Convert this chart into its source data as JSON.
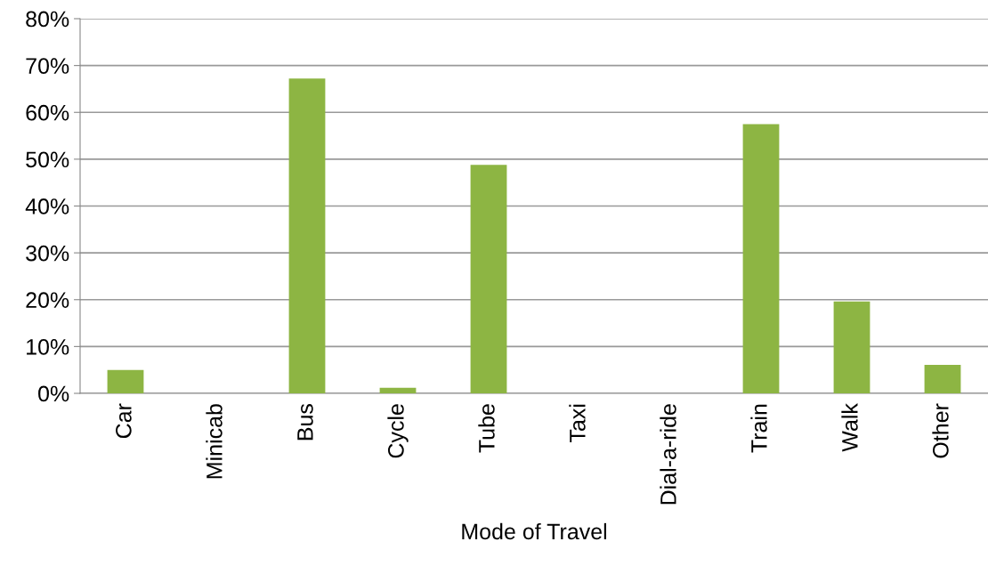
{
  "chart_data": {
    "type": "bar",
    "xlabel": "Mode of Travel",
    "categories": [
      "Car",
      "Minicab",
      "Bus",
      "Cycle",
      "Tube",
      "Taxi",
      "Dial-a-ride",
      "Train",
      "Walk",
      "Other"
    ],
    "values": [
      5.0,
      0,
      67.2,
      1.2,
      48.8,
      0,
      0,
      57.5,
      19.6,
      6.1
    ],
    "color": "#8db543",
    "ylim": [
      0,
      80
    ],
    "yticks": [
      {
        "value": 0,
        "label": "0%"
      },
      {
        "value": 10,
        "label": "10%"
      },
      {
        "value": 20,
        "label": "20%"
      },
      {
        "value": 30,
        "label": "30%"
      },
      {
        "value": 40,
        "label": "40%"
      },
      {
        "value": 50,
        "label": "50%"
      },
      {
        "value": 60,
        "label": "60%"
      },
      {
        "value": 70,
        "label": "70%"
      },
      {
        "value": 80,
        "label": "80%"
      }
    ],
    "grid": "y",
    "legend": false
  }
}
